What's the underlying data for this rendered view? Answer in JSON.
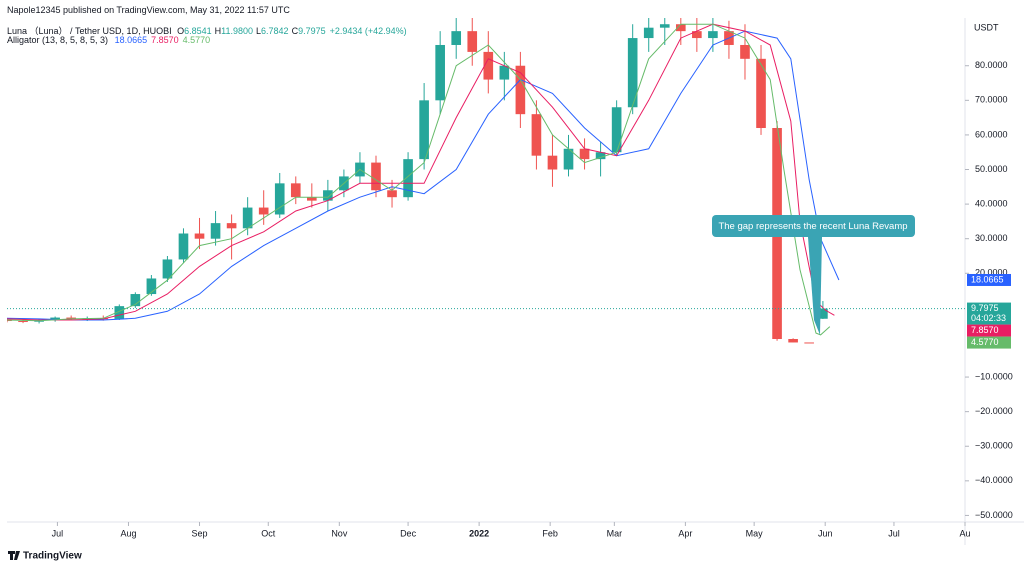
{
  "header": {
    "byline": "Napole12345 published on TradingView.com, May 31, 2022 11:57 UTC",
    "brand": "TradingView"
  },
  "chart_data": {
    "type": "candlestick",
    "legend": {
      "symbol": "Luna （Luna） / Tether USD, 1D, HUOBI",
      "ohlc": [
        {
          "key": "O",
          "value": "6.8541"
        },
        {
          "key": "H",
          "value": "11.9800"
        },
        {
          "key": "L",
          "value": "6.7842"
        },
        {
          "key": "C",
          "value": "9.7975"
        }
      ],
      "change": "+2.9434 (+42.94%)",
      "indicator": "Alligator (13, 8, 5, 8, 5, 3)"
    },
    "y_axis_title": "USDT",
    "countdown": "04:02:33",
    "annotation": "The gap represents the recent Luna Revamp",
    "up_color": "#26a69a",
    "down_color": "#ef5350",
    "grid": false,
    "xlim": [
      0,
      418
    ],
    "xticks": [
      {
        "value": 22,
        "label": "Jul"
      },
      {
        "value": 53,
        "label": "Aug"
      },
      {
        "value": 84,
        "label": "Sep"
      },
      {
        "value": 114,
        "label": "Oct"
      },
      {
        "value": 145,
        "label": "Nov"
      },
      {
        "value": 175,
        "label": "Dec"
      },
      {
        "value": 206,
        "label": "2022"
      },
      {
        "value": 237,
        "label": "Feb"
      },
      {
        "value": 265,
        "label": "Mar"
      },
      {
        "value": 296,
        "label": "Apr"
      },
      {
        "value": 326,
        "label": "May"
      },
      {
        "value": 357,
        "label": "Jun"
      },
      {
        "value": 387,
        "label": "Jul"
      },
      {
        "value": 418,
        "label": "Au"
      }
    ],
    "ylim": [
      -51.9,
      93.8
    ],
    "yticks": [
      {
        "value": 80,
        "label": "80.0000"
      },
      {
        "value": 70,
        "label": "70.0000"
      },
      {
        "value": 60,
        "label": "60.0000"
      },
      {
        "value": 50,
        "label": "50.0000"
      },
      {
        "value": 40,
        "label": "40.0000"
      },
      {
        "value": 30,
        "label": "30.0000"
      },
      {
        "value": 20,
        "label": "20.0000"
      },
      {
        "value": -10,
        "label": "−10.0000"
      },
      {
        "value": -20,
        "label": "−20.0000"
      },
      {
        "value": -30,
        "label": "−30.0000"
      },
      {
        "value": -40,
        "label": "−40.0000"
      },
      {
        "value": -50,
        "label": "−50.0000"
      }
    ],
    "candles": {
      "x": [
        0,
        7,
        14,
        21,
        28,
        35,
        42,
        49,
        56,
        63,
        70,
        77,
        84,
        91,
        98,
        105,
        112,
        119,
        126,
        133,
        140,
        147,
        154,
        161,
        168,
        175,
        182,
        189,
        196,
        203,
        210,
        217,
        224,
        231,
        238,
        245,
        252,
        259,
        266,
        273,
        280,
        287,
        294,
        301,
        308,
        315,
        322,
        329,
        336,
        343,
        350,
        356
      ],
      "open": [
        6.5,
        6.2,
        6.0,
        6.6,
        7.2,
        6.8,
        7.0,
        6.8,
        10.5,
        14.0,
        18.5,
        24.0,
        31.5,
        30.0,
        34.5,
        33,
        39,
        37,
        46,
        42,
        41,
        44,
        48,
        52,
        44,
        42,
        53,
        70,
        86,
        90,
        84,
        76,
        80,
        66,
        54,
        50,
        56,
        53,
        55,
        68,
        88,
        91,
        92,
        90,
        88,
        90,
        86,
        82,
        62,
        1,
        0.0002,
        6.8541
      ],
      "high": [
        7.0,
        6.9,
        6.8,
        7.5,
        7.8,
        7.5,
        7.8,
        11.0,
        14.5,
        19.5,
        25.0,
        33.0,
        36.0,
        38.0,
        37.0,
        42,
        44,
        49,
        48,
        46,
        47,
        50,
        55,
        54,
        47,
        55,
        75,
        90,
        94,
        94,
        90,
        84,
        84,
        70,
        60,
        60,
        59,
        58,
        70,
        92,
        94,
        94,
        94,
        94,
        94,
        93,
        92,
        86,
        64,
        1.2,
        0.0003,
        11.98
      ],
      "low": [
        5.8,
        5.6,
        5.5,
        6.0,
        6.4,
        6.2,
        6.3,
        6.5,
        10.0,
        13.5,
        17.5,
        23.0,
        27.0,
        28.0,
        24.0,
        31,
        34,
        36,
        40,
        39,
        38,
        42,
        46,
        42,
        39,
        41,
        50,
        66,
        82,
        80,
        72,
        70,
        62,
        50,
        45,
        48,
        50,
        48,
        54,
        66,
        84,
        86,
        86,
        84,
        84,
        82,
        76,
        60,
        0.5,
        0.0001,
        0.0001,
        6.7842
      ],
      "close": [
        6.2,
        6.0,
        6.6,
        7.2,
        6.8,
        7.0,
        6.8,
        10.5,
        14.0,
        18.5,
        24.0,
        31.5,
        30.0,
        34.5,
        33.0,
        39,
        37,
        46,
        42,
        41,
        44,
        48,
        52,
        44,
        42,
        53,
        70,
        86,
        90,
        84,
        76,
        80,
        66,
        54,
        50,
        56,
        53,
        55,
        68,
        88,
        91,
        92,
        90,
        88,
        90,
        86,
        82,
        62,
        1,
        0.0002,
        0.0001,
        9.7975
      ]
    },
    "series": [
      {
        "color": "#2962ff",
        "last_label": "18.0665",
        "x": [
          0,
          14,
          28,
          42,
          56,
          70,
          84,
          98,
          112,
          126,
          140,
          154,
          168,
          182,
          196,
          210,
          224,
          238,
          252,
          266,
          280,
          294,
          308,
          322,
          336,
          342,
          350,
          355,
          363
        ],
        "values": [
          7,
          6.8,
          6.5,
          6.5,
          7,
          9,
          14,
          22,
          28,
          33,
          38,
          42,
          45,
          43,
          50,
          66,
          76,
          72,
          62,
          54,
          56,
          72,
          86,
          90,
          88,
          82,
          47,
          30,
          18.0665
        ]
      },
      {
        "color": "#e91e63",
        "last_label": "7.8570",
        "x": [
          0,
          14,
          28,
          42,
          56,
          70,
          84,
          98,
          112,
          126,
          140,
          154,
          168,
          182,
          196,
          210,
          224,
          238,
          252,
          266,
          280,
          294,
          308,
          322,
          333,
          342,
          346,
          353,
          357,
          361
        ],
        "values": [
          6.8,
          6.5,
          6.5,
          6.8,
          9,
          14,
          22,
          28,
          32,
          38,
          41,
          46,
          46,
          46,
          65,
          82,
          78,
          68,
          56,
          54,
          70,
          88,
          92,
          90,
          86,
          64,
          35,
          12,
          9.4,
          7.857
        ]
      },
      {
        "color": "#66bb6a",
        "last_label": "4.5770",
        "x": [
          0,
          14,
          28,
          42,
          56,
          70,
          84,
          98,
          112,
          126,
          140,
          154,
          168,
          182,
          196,
          210,
          224,
          238,
          252,
          266,
          280,
          294,
          308,
          322,
          333,
          339,
          346,
          353,
          355,
          359
        ],
        "values": [
          6.5,
          6.3,
          6.8,
          7,
          11,
          18,
          28,
          30,
          36,
          42,
          42,
          50,
          44,
          52,
          80,
          86,
          76,
          60,
          52,
          55,
          82,
          92,
          92,
          88,
          76,
          50,
          21,
          2.7,
          2.2,
          4.577
        ]
      }
    ]
  }
}
